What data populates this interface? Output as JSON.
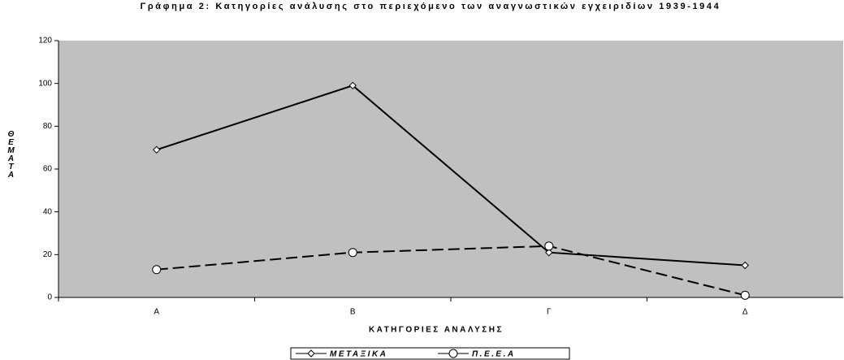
{
  "chart_data": {
    "type": "line",
    "title": "Γράφημα 2: Κατηγορίες ανάλυσης στο περιεχόμενο των αναγνωστικών εγχειριδίων 1939-1944",
    "x_label": "ΚΑΤΗΓΟΡΙΕΣ ΑΝΑΛΥΣΗΣ",
    "y_label": "ΘΕΜΑΤΑ",
    "categories": [
      "Α",
      "Β",
      "Γ",
      "Δ"
    ],
    "series": [
      {
        "name": "ΜΕΤΑΞΙΚΑ",
        "color": "#000000",
        "style": "solid",
        "marker": "diamond",
        "values": [
          69,
          99,
          21,
          15
        ]
      },
      {
        "name": "Π.Ε.Ε.Α",
        "color": "#000000",
        "style": "dashed",
        "marker": "circle",
        "values": [
          13,
          21,
          24,
          1
        ]
      }
    ],
    "ylim": [
      0,
      120
    ],
    "yticks": [
      0,
      20,
      40,
      60,
      80,
      100,
      120
    ],
    "plot_background": "#c0c0c0",
    "legend": "bottom"
  }
}
